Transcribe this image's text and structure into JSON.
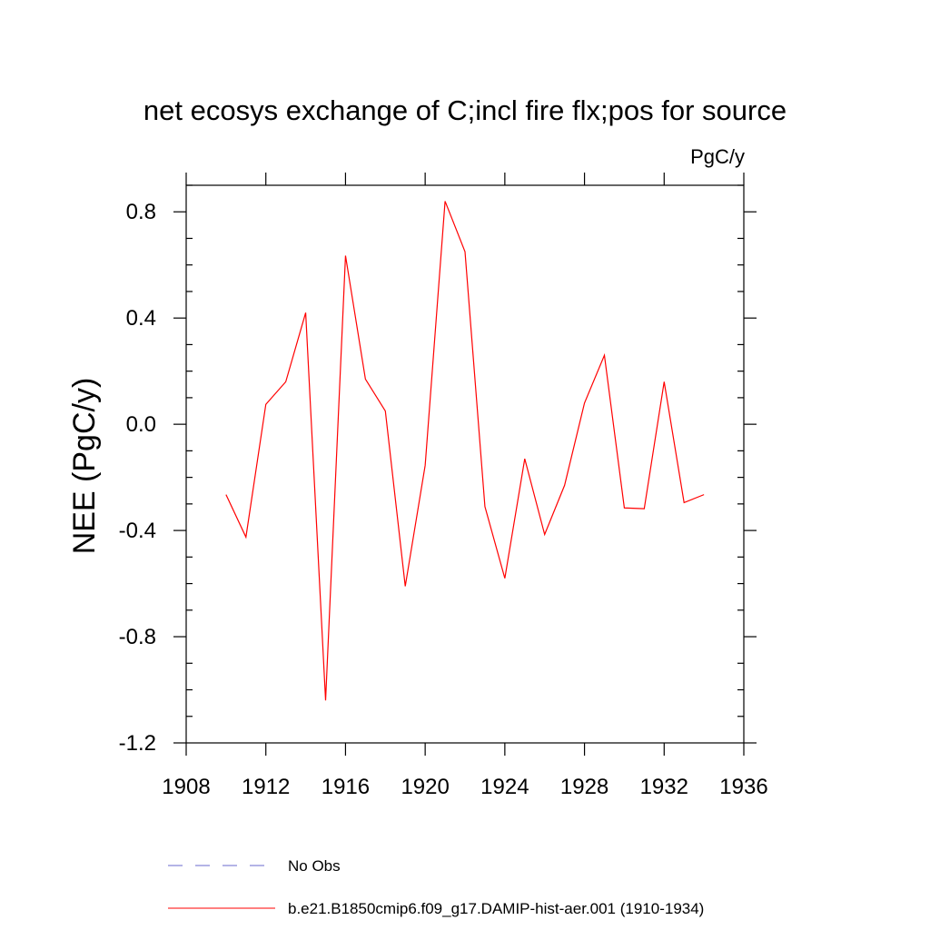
{
  "chart_data": {
    "type": "line",
    "title": "net ecosys exchange of C;incl fire flx;pos for source",
    "units_label": "PgC/y",
    "xlabel": "",
    "ylabel": "NEE  (PgC/y)",
    "xlim": [
      1908,
      1936
    ],
    "ylim": [
      -1.2,
      0.9
    ],
    "x_ticks": [
      1908,
      1912,
      1916,
      1920,
      1924,
      1928,
      1932,
      1936
    ],
    "x_tick_labels": [
      "1908",
      "1912",
      "1916",
      "1920",
      "1924",
      "1928",
      "1932",
      "1936"
    ],
    "y_ticks": [
      -1.2,
      -0.8,
      -0.4,
      0.0,
      0.4,
      0.8
    ],
    "y_tick_labels": [
      "-1.2",
      "-0.8",
      "-0.4",
      "0.0",
      "0.4",
      "0.8"
    ],
    "grid": false,
    "legend_position": "bottom",
    "series": [
      {
        "name": "b.e21.B1850cmip6.f09_g17.DAMIP-hist-aer.001 (1910-1934)",
        "color": "#ff0000",
        "style": "solid",
        "x": [
          1910,
          1911,
          1912,
          1913,
          1914,
          1915,
          1916,
          1917,
          1918,
          1919,
          1920,
          1921,
          1922,
          1923,
          1924,
          1925,
          1926,
          1927,
          1928,
          1929,
          1930,
          1931,
          1932,
          1933,
          1934
        ],
        "y": [
          -0.265,
          -0.425,
          0.075,
          0.16,
          0.42,
          -1.04,
          0.635,
          0.17,
          0.05,
          -0.61,
          -0.155,
          0.84,
          0.65,
          -0.31,
          -0.58,
          -0.13,
          -0.415,
          -0.23,
          0.08,
          0.26,
          -0.315,
          -0.318,
          0.16,
          -0.295,
          -0.265
        ]
      }
    ],
    "legend": [
      {
        "label": "No Obs",
        "color": "#6a6acd",
        "style": "dashed"
      },
      {
        "label": "b.e21.B1850cmip6.f09_g17.DAMIP-hist-aer.001 (1910-1934)",
        "color": "#ff0000",
        "style": "solid"
      }
    ]
  }
}
